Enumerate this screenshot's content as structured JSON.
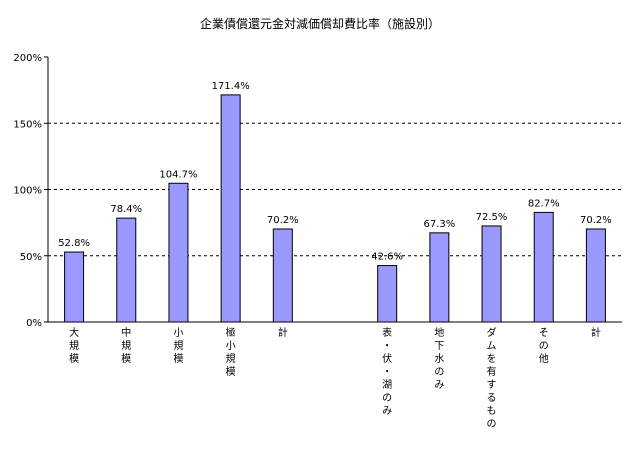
{
  "chart_data": {
    "type": "bar",
    "title": "企業債償還元金対減価償却費比率（施設別）",
    "xlabel": "",
    "ylabel": "",
    "ylim": [
      0,
      200
    ],
    "yticks": [
      0,
      50,
      100,
      150,
      200
    ],
    "ytick_labels": [
      "0%",
      "50%",
      "100%",
      "150%",
      "200%"
    ],
    "grid": "dashed horizontal at 50%, 100%, 150%",
    "categories": [
      "大規模",
      "中規模",
      "小規模",
      "極小規模",
      "計",
      "",
      "表・伏・湖のみ",
      "地下水のみ",
      "ダムを有するもの",
      "その他",
      "計"
    ],
    "values": [
      52.8,
      78.4,
      104.7,
      171.4,
      70.2,
      null,
      42.6,
      67.3,
      72.5,
      82.7,
      70.2
    ],
    "data_labels": [
      "52.8%",
      "78.4%",
      "104.7%",
      "171.4%",
      "70.2%",
      "",
      "42.6%",
      "67.3%",
      "72.5%",
      "82.7%",
      "70.2%"
    ],
    "bar_color": "#9999ff",
    "bar_stroke": "#000000"
  }
}
